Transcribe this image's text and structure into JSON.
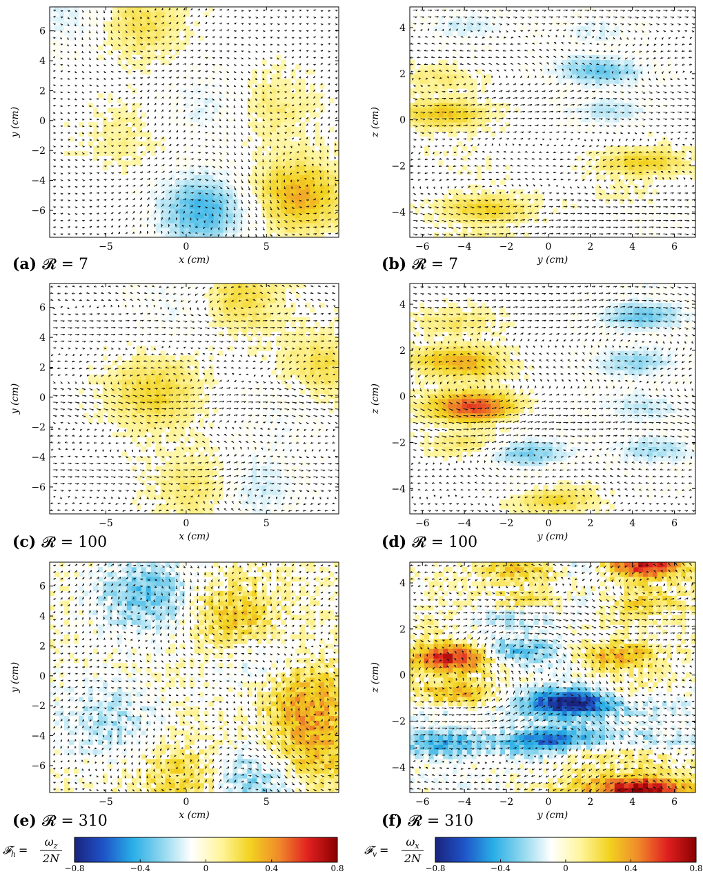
{
  "figure": {
    "colormap": [
      "#1a237e",
      "#1e54c8",
      "#29aee6",
      "#8fd7ee",
      "#ffffff",
      "#fff59d",
      "#f2d320",
      "#f08a2a",
      "#e02020",
      "#8b0000"
    ]
  },
  "chart_data": [
    {
      "type": "heatmap",
      "id": "a",
      "panel_label": "(a)",
      "caption": "𝓡 = 7",
      "xlabel": "x (cm)",
      "ylabel": "y (cm)",
      "xlim": [
        -8.5,
        9.5
      ],
      "ylim": [
        -7.8,
        7.6
      ],
      "xticks": [
        -5,
        0,
        5
      ],
      "yticks": [
        -6,
        -4,
        -2,
        0,
        2,
        4,
        6
      ],
      "field": "ω_z / 2N",
      "flow": "mixed vortices",
      "features": [
        {
          "x": 1,
          "y": -6,
          "value": -0.4
        },
        {
          "x": 1.5,
          "y": 1,
          "value": -0.15
        },
        {
          "x": 7,
          "y": -5,
          "value": 0.35
        },
        {
          "x": -3,
          "y": 6.5,
          "value": 0.2
        },
        {
          "x": 5,
          "y": 1,
          "value": 0.15
        },
        {
          "x": -4,
          "y": -1,
          "value": 0.1
        },
        {
          "x": -7,
          "y": 7,
          "value": -0.15
        }
      ]
    },
    {
      "type": "heatmap",
      "id": "b",
      "panel_label": "(b)",
      "caption": "𝓡 = 7",
      "xlabel": "y (cm)",
      "ylabel": "z (cm)",
      "xlim": [
        -6.6,
        7
      ],
      "ylim": [
        -5.1,
        4.9
      ],
      "xticks": [
        -6,
        -4,
        -2,
        0,
        2,
        4,
        6
      ],
      "yticks": [
        -4,
        -2,
        0,
        2,
        4
      ],
      "field": "ω_x / 2N",
      "flow": "horizontal layers",
      "features": [
        {
          "x": -3,
          "y": -4.5,
          "value": 0.2
        },
        {
          "x": -5,
          "y": 0.7,
          "value": 0.2
        },
        {
          "x": 4.5,
          "y": -2.3,
          "value": 0.2
        },
        {
          "x": 2,
          "y": 2.8,
          "value": -0.15
        },
        {
          "x": 3,
          "y": 1,
          "value": -0.15
        },
        {
          "x": -4,
          "y": 4,
          "value": -0.1
        },
        {
          "x": 5,
          "y": -4,
          "value": -0.1
        }
      ]
    },
    {
      "type": "heatmap",
      "id": "c",
      "panel_label": "(c)",
      "caption": "𝓡 = 100",
      "xlabel": "x (cm)",
      "ylabel": "y (cm)",
      "xlim": [
        -8.5,
        9.5
      ],
      "ylim": [
        -7.8,
        7.6
      ],
      "xticks": [
        -5,
        0,
        5
      ],
      "yticks": [
        -6,
        -4,
        -2,
        0,
        2,
        4,
        6
      ],
      "field": "ω_z / 2N",
      "flow": "horizontal jet",
      "features": [
        {
          "x": -2,
          "y": 0.3,
          "value": 0.25
        },
        {
          "x": 3,
          "y": 6.8,
          "value": 0.25
        },
        {
          "x": 1,
          "y": -6,
          "value": 0.2
        },
        {
          "x": 4,
          "y": -6,
          "value": -0.2
        },
        {
          "x": 0,
          "y": 6.5,
          "value": -0.15
        },
        {
          "x": 6,
          "y": -1,
          "value": -0.1
        },
        {
          "x": 8.5,
          "y": 2,
          "value": 0.2
        }
      ]
    },
    {
      "type": "heatmap",
      "id": "d",
      "panel_label": "(d)",
      "caption": "𝓡 = 100",
      "xlabel": "y (cm)",
      "ylabel": "z (cm)",
      "xlim": [
        -6.6,
        7
      ],
      "ylim": [
        -5.1,
        4.9
      ],
      "xticks": [
        -6,
        -4,
        -2,
        0,
        2,
        4,
        6
      ],
      "yticks": [
        -4,
        -2,
        0,
        2,
        4
      ],
      "field": "ω_x / 2N",
      "flow": "horizontal layers",
      "features": [
        {
          "x": -3.5,
          "y": -0.6,
          "value": 0.35
        },
        {
          "x": -1,
          "y": -2.7,
          "value": -0.25
        },
        {
          "x": -4.5,
          "y": 2,
          "value": 0.2
        },
        {
          "x": 4.5,
          "y": 3.8,
          "value": -0.2
        },
        {
          "x": 0,
          "y": -4.5,
          "value": 0.2
        },
        {
          "x": 4,
          "y": 1,
          "value": -0.15
        },
        {
          "x": 5,
          "y": -2,
          "value": -0.15
        }
      ]
    },
    {
      "type": "heatmap",
      "id": "e",
      "panel_label": "(e)",
      "caption": "𝓡 = 310",
      "xlabel": "x (cm)",
      "ylabel": "y (cm)",
      "xlim": [
        -8.5,
        9.5
      ],
      "ylim": [
        -7.8,
        7.6
      ],
      "xticks": [
        -5,
        0,
        5
      ],
      "yticks": [
        -6,
        -4,
        -2,
        0,
        2,
        4,
        6
      ],
      "field": "ω_z / 2N",
      "flow": "vortex pair",
      "features": [
        {
          "x": -2.5,
          "y": 5.5,
          "value": -0.35
        },
        {
          "x": 3,
          "y": 4,
          "value": 0.3
        },
        {
          "x": -5,
          "y": -3,
          "value": -0.2
        },
        {
          "x": 4.5,
          "y": 1,
          "value": -0.15
        },
        {
          "x": 7.5,
          "y": -1.5,
          "value": 0.35
        },
        {
          "x": 8,
          "y": -5,
          "value": 0.3
        },
        {
          "x": 0,
          "y": -7,
          "value": 0.25
        },
        {
          "x": 4,
          "y": -7.2,
          "value": -0.3
        }
      ]
    },
    {
      "type": "heatmap",
      "id": "f",
      "panel_label": "(f)",
      "caption": "𝓡 = 310",
      "xlabel": "y (cm)",
      "ylabel": "z (cm)",
      "xlim": [
        -6.6,
        7
      ],
      "ylim": [
        -5.1,
        4.9
      ],
      "xticks": [
        -6,
        -4,
        -2,
        0,
        2,
        4,
        6
      ],
      "yticks": [
        -4,
        -2,
        0,
        2,
        4
      ],
      "field": "ω_x / 2N",
      "flow": "strong layers",
      "features": [
        {
          "x": -4.5,
          "y": 0.2,
          "value": 0.5
        },
        {
          "x": 1.5,
          "y": -1.5,
          "value": -0.55
        },
        {
          "x": 0,
          "y": -2.8,
          "value": -0.45
        },
        {
          "x": -5,
          "y": -2.5,
          "value": -0.3
        },
        {
          "x": -1.5,
          "y": 2,
          "value": -0.45
        },
        {
          "x": -1,
          "y": 3.5,
          "value": 0.45
        },
        {
          "x": 3,
          "y": 0.2,
          "value": 0.3
        },
        {
          "x": 1,
          "y": -3.5,
          "value": 0.35
        },
        {
          "x": 4.5,
          "y": 4.6,
          "value": 0.4
        },
        {
          "x": 4.5,
          "y": -4.9,
          "value": 0.5
        },
        {
          "x": 1,
          "y": 4,
          "value": -0.2
        },
        {
          "x": 5,
          "y": -2.5,
          "value": -0.2
        }
      ]
    }
  ],
  "colorbars": [
    {
      "id": "h",
      "label_lhs": "𝓕",
      "label_sub": "h",
      "numerator": "ω",
      "numerator_sub": "z",
      "denominator": "2N",
      "range": [
        -0.8,
        0.8
      ],
      "ticks": [
        -0.8,
        -0.4,
        0,
        0.4,
        0.8
      ],
      "tick_labels": [
        "−0.8",
        "−0.4",
        "0",
        "0.4",
        "0.8"
      ]
    },
    {
      "id": "v",
      "label_lhs": "𝓕",
      "label_sub": "v",
      "numerator": "ω",
      "numerator_sub": "x",
      "denominator": "2N",
      "range": [
        -0.8,
        0.8
      ],
      "ticks": [
        -0.8,
        -0.4,
        0,
        0.4,
        0.8
      ],
      "tick_labels": [
        "−0.8",
        "−0.4",
        "0",
        "0.4",
        "0.8"
      ]
    }
  ]
}
